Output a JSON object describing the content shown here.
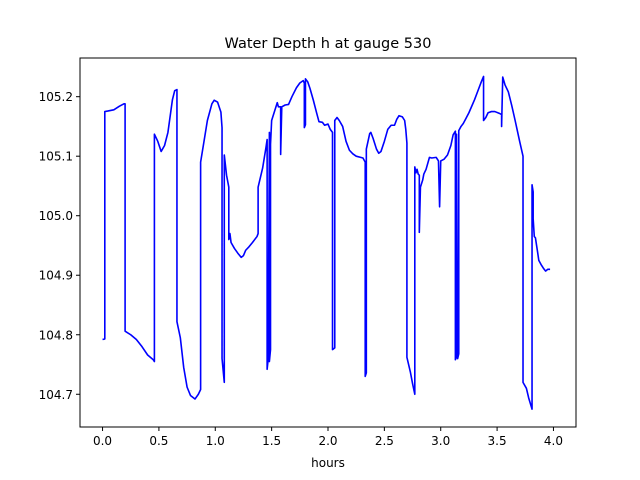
{
  "chart_data": {
    "type": "line",
    "title": "Water Depth h at gauge 530",
    "xlabel": "hours",
    "ylabel": "",
    "xlim": [
      -0.2,
      4.2
    ],
    "ylim": [
      104.645,
      105.265
    ],
    "xticks": [
      0.0,
      0.5,
      1.0,
      1.5,
      2.0,
      2.5,
      3.0,
      3.5,
      4.0
    ],
    "xtick_labels": [
      "0.0",
      "0.5",
      "1.0",
      "1.5",
      "2.0",
      "2.5",
      "3.0",
      "3.5",
      "4.0"
    ],
    "yticks": [
      104.7,
      104.8,
      104.9,
      105.0,
      105.1,
      105.2
    ],
    "ytick_labels": [
      "104.7",
      "104.8",
      "104.9",
      "105.0",
      "105.1",
      "105.2"
    ],
    "grid": false,
    "legend": "none",
    "series": [
      {
        "color": "#0000ff",
        "points": [
          [
            0.0,
            104.792
          ],
          [
            0.02,
            104.793
          ],
          [
            0.02,
            105.175
          ],
          [
            0.05,
            105.176
          ],
          [
            0.1,
            105.178
          ],
          [
            0.15,
            105.184
          ],
          [
            0.19,
            105.188
          ],
          [
            0.2,
            105.188
          ],
          [
            0.2,
            104.806
          ],
          [
            0.25,
            104.8
          ],
          [
            0.3,
            104.792
          ],
          [
            0.35,
            104.78
          ],
          [
            0.4,
            104.766
          ],
          [
            0.45,
            104.758
          ],
          [
            0.46,
            104.755
          ],
          [
            0.46,
            105.137
          ],
          [
            0.49,
            105.125
          ],
          [
            0.52,
            105.108
          ],
          [
            0.55,
            105.118
          ],
          [
            0.58,
            105.14
          ],
          [
            0.62,
            105.195
          ],
          [
            0.64,
            105.21
          ],
          [
            0.66,
            105.212
          ],
          [
            0.66,
            104.822
          ],
          [
            0.69,
            104.795
          ],
          [
            0.72,
            104.745
          ],
          [
            0.75,
            104.712
          ],
          [
            0.78,
            104.698
          ],
          [
            0.8,
            104.695
          ],
          [
            0.82,
            104.692
          ],
          [
            0.85,
            104.7
          ],
          [
            0.87,
            104.708
          ],
          [
            0.87,
            105.09
          ],
          [
            0.9,
            105.125
          ],
          [
            0.93,
            105.16
          ],
          [
            0.97,
            105.188
          ],
          [
            0.99,
            105.194
          ],
          [
            1.02,
            105.191
          ],
          [
            1.05,
            105.174
          ],
          [
            1.06,
            105.148
          ],
          [
            1.06,
            104.76
          ],
          [
            1.08,
            104.72
          ],
          [
            1.08,
            105.102
          ],
          [
            1.1,
            105.068
          ],
          [
            1.12,
            105.048
          ],
          [
            1.12,
            104.96
          ],
          [
            1.13,
            104.97
          ],
          [
            1.14,
            104.955
          ],
          [
            1.17,
            104.945
          ],
          [
            1.2,
            104.937
          ],
          [
            1.23,
            104.93
          ],
          [
            1.25,
            104.933
          ],
          [
            1.27,
            104.942
          ],
          [
            1.3,
            104.948
          ],
          [
            1.33,
            104.955
          ],
          [
            1.37,
            104.965
          ],
          [
            1.38,
            104.97
          ],
          [
            1.38,
            105.048
          ],
          [
            1.42,
            105.08
          ],
          [
            1.45,
            105.115
          ],
          [
            1.46,
            105.128
          ],
          [
            1.46,
            104.742
          ],
          [
            1.47,
            104.76
          ],
          [
            1.48,
            105.14
          ],
          [
            1.48,
            104.755
          ],
          [
            1.49,
            104.775
          ],
          [
            1.49,
            105.12
          ],
          [
            1.5,
            105.16
          ],
          [
            1.53,
            105.178
          ],
          [
            1.55,
            105.19
          ],
          [
            1.56,
            105.183
          ],
          [
            1.58,
            105.183
          ],
          [
            1.58,
            105.103
          ],
          [
            1.59,
            105.183
          ],
          [
            1.62,
            105.186
          ],
          [
            1.65,
            105.187
          ],
          [
            1.68,
            105.2
          ],
          [
            1.72,
            105.215
          ],
          [
            1.75,
            105.223
          ],
          [
            1.78,
            105.227
          ],
          [
            1.79,
            105.223
          ],
          [
            1.79,
            105.148
          ],
          [
            1.8,
            105.153
          ],
          [
            1.8,
            105.23
          ],
          [
            1.82,
            105.225
          ],
          [
            1.84,
            105.214
          ],
          [
            1.87,
            105.194
          ],
          [
            1.9,
            105.172
          ],
          [
            1.92,
            105.158
          ],
          [
            1.95,
            105.157
          ],
          [
            1.97,
            105.152
          ],
          [
            2.0,
            105.154
          ],
          [
            2.02,
            105.145
          ],
          [
            2.04,
            105.14
          ],
          [
            2.04,
            104.775
          ],
          [
            2.06,
            104.778
          ],
          [
            2.06,
            105.16
          ],
          [
            2.08,
            105.165
          ],
          [
            2.1,
            105.16
          ],
          [
            2.13,
            105.15
          ],
          [
            2.16,
            105.125
          ],
          [
            2.19,
            105.11
          ],
          [
            2.22,
            105.104
          ],
          [
            2.25,
            105.1
          ],
          [
            2.29,
            105.098
          ],
          [
            2.31,
            105.097
          ],
          [
            2.33,
            105.09
          ],
          [
            2.33,
            104.73
          ],
          [
            2.34,
            104.736
          ],
          [
            2.34,
            105.112
          ],
          [
            2.37,
            105.138
          ],
          [
            2.38,
            105.14
          ],
          [
            2.4,
            105.13
          ],
          [
            2.43,
            105.112
          ],
          [
            2.45,
            105.105
          ],
          [
            2.47,
            105.108
          ],
          [
            2.5,
            105.125
          ],
          [
            2.53,
            105.145
          ],
          [
            2.56,
            105.152
          ],
          [
            2.59,
            105.152
          ],
          [
            2.61,
            105.162
          ],
          [
            2.63,
            105.168
          ],
          [
            2.66,
            105.166
          ],
          [
            2.68,
            105.16
          ],
          [
            2.69,
            105.145
          ],
          [
            2.7,
            105.122
          ],
          [
            2.7,
            104.762
          ],
          [
            2.73,
            104.738
          ],
          [
            2.75,
            104.718
          ],
          [
            2.77,
            104.7
          ],
          [
            2.77,
            105.082
          ],
          [
            2.78,
            105.072
          ],
          [
            2.79,
            105.078
          ],
          [
            2.8,
            105.07
          ],
          [
            2.81,
            105.068
          ],
          [
            2.81,
            104.972
          ],
          [
            2.82,
            105.048
          ],
          [
            2.84,
            105.06
          ],
          [
            2.85,
            105.07
          ],
          [
            2.87,
            105.078
          ],
          [
            2.9,
            105.098
          ],
          [
            2.92,
            105.097
          ],
          [
            2.96,
            105.098
          ],
          [
            2.97,
            105.095
          ],
          [
            2.98,
            105.092
          ],
          [
            2.99,
            105.015
          ],
          [
            3.0,
            105.092
          ],
          [
            3.03,
            105.095
          ],
          [
            3.06,
            105.102
          ],
          [
            3.09,
            105.118
          ],
          [
            3.11,
            105.136
          ],
          [
            3.13,
            105.142
          ],
          [
            3.13,
            104.758
          ],
          [
            3.14,
            104.763
          ],
          [
            3.14,
            105.137
          ],
          [
            3.15,
            104.76
          ],
          [
            3.16,
            104.768
          ],
          [
            3.16,
            105.143
          ],
          [
            3.18,
            105.15
          ],
          [
            3.2,
            105.155
          ],
          [
            3.22,
            105.162
          ],
          [
            3.25,
            105.173
          ],
          [
            3.3,
            105.195
          ],
          [
            3.33,
            105.21
          ],
          [
            3.36,
            105.225
          ],
          [
            3.38,
            105.234
          ],
          [
            3.38,
            105.16
          ],
          [
            3.4,
            105.165
          ],
          [
            3.42,
            105.173
          ],
          [
            3.45,
            105.175
          ],
          [
            3.48,
            105.175
          ],
          [
            3.52,
            105.172
          ],
          [
            3.54,
            105.17
          ],
          [
            3.54,
            105.15
          ],
          [
            3.55,
            105.233
          ],
          [
            3.57,
            105.22
          ],
          [
            3.6,
            105.208
          ],
          [
            3.63,
            105.185
          ],
          [
            3.66,
            105.16
          ],
          [
            3.7,
            105.125
          ],
          [
            3.73,
            105.1
          ],
          [
            3.73,
            104.72
          ],
          [
            3.76,
            104.71
          ],
          [
            3.78,
            104.694
          ],
          [
            3.81,
            104.675
          ],
          [
            3.81,
            105.052
          ],
          [
            3.82,
            105.04
          ],
          [
            3.82,
            104.995
          ],
          [
            3.83,
            104.965
          ],
          [
            3.84,
            104.963
          ],
          [
            3.86,
            104.938
          ],
          [
            3.87,
            104.925
          ],
          [
            3.89,
            104.918
          ],
          [
            3.91,
            104.912
          ],
          [
            3.93,
            104.907
          ],
          [
            3.95,
            104.91
          ],
          [
            3.97,
            104.91
          ]
        ]
      }
    ]
  }
}
